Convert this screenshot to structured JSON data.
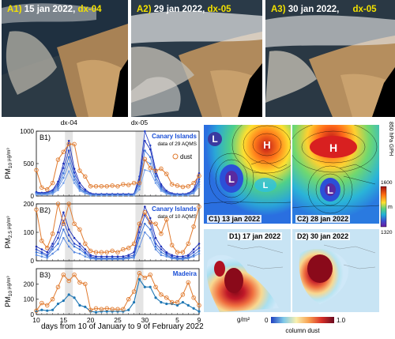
{
  "satellite": [
    {
      "id": "A1)",
      "date": "15 jan 2022,",
      "dx": "dx-04"
    },
    {
      "id": "A2)",
      "date": "29 jan 2022,",
      "dx": "dx-05"
    },
    {
      "id": "A3)",
      "date": "30 jan 2022,",
      "dx": "dx-05"
    }
  ],
  "dx_marks": [
    "dx-04",
    "dx-05"
  ],
  "chart_data": [
    {
      "type": "line",
      "panel": "B1)",
      "ylabel_main": "PM",
      "ylabel_sub": "10",
      "ylabel_unit": " µg/m³",
      "region": "Canary Islands",
      "note": "data of 29 AQMS",
      "legend": "dust",
      "ylim": [
        0,
        1000
      ],
      "yticks": [
        0,
        500,
        1000
      ],
      "x": [
        10,
        11,
        12,
        13,
        14,
        15,
        16,
        17,
        18,
        19,
        20,
        21,
        22,
        23,
        24,
        25,
        26,
        27,
        28,
        29,
        30,
        31,
        1,
        2,
        3,
        4,
        5,
        6,
        7,
        8,
        9
      ],
      "dust": [
        400,
        130,
        100,
        200,
        560,
        680,
        800,
        800,
        390,
        300,
        150,
        150,
        150,
        150,
        160,
        150,
        180,
        170,
        200,
        200,
        570,
        430,
        390,
        420,
        340,
        180,
        160,
        140,
        150,
        200,
        310
      ],
      "stations": [
        [
          60,
          50,
          60,
          90,
          220,
          500,
          850,
          420,
          200,
          100,
          40,
          30,
          30,
          30,
          30,
          30,
          30,
          30,
          30,
          250,
          850,
          720,
          350,
          180,
          80,
          40,
          30,
          30,
          40,
          100,
          350
        ],
        [
          50,
          40,
          50,
          80,
          180,
          430,
          700,
          360,
          150,
          80,
          30,
          20,
          20,
          20,
          20,
          20,
          20,
          20,
          30,
          300,
          1000,
          780,
          400,
          150,
          60,
          30,
          20,
          20,
          30,
          80,
          260
        ],
        [
          40,
          30,
          40,
          60,
          150,
          350,
          600,
          300,
          120,
          60,
          20,
          20,
          20,
          20,
          20,
          20,
          20,
          20,
          20,
          200,
          700,
          600,
          300,
          120,
          50,
          20,
          20,
          20,
          20,
          60,
          220
        ],
        [
          30,
          20,
          30,
          40,
          120,
          280,
          500,
          250,
          100,
          50,
          20,
          10,
          10,
          10,
          10,
          10,
          10,
          10,
          20,
          150,
          550,
          500,
          250,
          100,
          40,
          20,
          10,
          10,
          20,
          50,
          180
        ],
        [
          20,
          20,
          20,
          30,
          90,
          200,
          380,
          200,
          80,
          40,
          10,
          10,
          10,
          10,
          10,
          10,
          10,
          10,
          10,
          100,
          400,
          380,
          200,
          80,
          30,
          10,
          10,
          10,
          10,
          40,
          140
        ]
      ]
    },
    {
      "type": "line",
      "panel": "B2)",
      "ylabel_main": "PM",
      "ylabel_sub": "2.5",
      "ylabel_unit": " µg/m³",
      "region": "Canary Islands",
      "note": "data of 10 AQMS",
      "ylim": [
        0,
        200
      ],
      "yticks": [
        0,
        100,
        200
      ],
      "x": [
        10,
        11,
        12,
        13,
        14,
        15,
        16,
        17,
        18,
        19,
        20,
        21,
        22,
        23,
        24,
        25,
        26,
        27,
        28,
        29,
        30,
        31,
        1,
        2,
        3,
        4,
        5,
        6,
        7,
        8,
        9
      ],
      "dust": [
        180,
        70,
        45,
        95,
        210,
        130,
        210,
        130,
        110,
        60,
        35,
        30,
        30,
        30,
        35,
        30,
        40,
        45,
        60,
        130,
        170,
        135,
        130,
        95,
        145,
        55,
        30,
        30,
        60,
        120,
        190
      ],
      "stations": [
        [
          50,
          40,
          30,
          60,
          100,
          170,
          110,
          80,
          60,
          40,
          20,
          15,
          15,
          15,
          15,
          15,
          15,
          20,
          30,
          120,
          190,
          150,
          80,
          50,
          30,
          20,
          15,
          15,
          20,
          40,
          60
        ],
        [
          40,
          30,
          20,
          50,
          80,
          140,
          90,
          60,
          50,
          30,
          15,
          10,
          10,
          10,
          10,
          10,
          10,
          15,
          20,
          100,
          160,
          130,
          60,
          40,
          25,
          15,
          10,
          10,
          15,
          30,
          45
        ],
        [
          30,
          25,
          15,
          40,
          60,
          110,
          70,
          50,
          40,
          25,
          10,
          8,
          8,
          8,
          8,
          8,
          8,
          10,
          15,
          80,
          130,
          110,
          50,
          30,
          20,
          10,
          8,
          8,
          10,
          20,
          35
        ],
        [
          20,
          15,
          10,
          25,
          40,
          80,
          50,
          30,
          25,
          15,
          8,
          5,
          5,
          5,
          5,
          5,
          5,
          8,
          10,
          50,
          100,
          80,
          40,
          20,
          15,
          8,
          5,
          5,
          8,
          15,
          25
        ]
      ]
    },
    {
      "type": "line",
      "panel": "B3)",
      "ylabel_main": "PM",
      "ylabel_sub": "10",
      "ylabel_unit": " µg/m³",
      "region": "Madeira",
      "ylim": [
        0,
        300
      ],
      "yticks": [
        0,
        100,
        200
      ],
      "x": [
        10,
        11,
        12,
        13,
        14,
        15,
        16,
        17,
        18,
        19,
        20,
        21,
        22,
        23,
        24,
        25,
        26,
        27,
        28,
        29,
        30,
        31,
        1,
        2,
        3,
        4,
        5,
        6,
        7,
        8,
        9
      ],
      "dust": [
        25,
        75,
        60,
        100,
        180,
        260,
        220,
        260,
        210,
        200,
        30,
        40,
        35,
        40,
        35,
        35,
        35,
        100,
        150,
        270,
        240,
        260,
        180,
        130,
        110,
        80,
        80,
        130,
        210,
        110,
        60
      ],
      "station": [
        20,
        30,
        25,
        30,
        70,
        90,
        130,
        110,
        60,
        50,
        20,
        15,
        20,
        20,
        20,
        20,
        20,
        30,
        80,
        230,
        180,
        180,
        110,
        80,
        70,
        70,
        60,
        80,
        60,
        40,
        20
      ]
    }
  ],
  "xticks": [
    "10",
    "15",
    "20",
    "25",
    "30",
    "5",
    "9"
  ],
  "xaxis_label": "days from 10 of January to 9 of February  2022",
  "maps": [
    {
      "id": "C1)",
      "date": "13 jan 2022"
    },
    {
      "id": "C2)",
      "date": "28 jan 2022"
    },
    {
      "id": "D1)",
      "date": "17 jan 2022"
    },
    {
      "id": "D2)",
      "date": "30 jan 2022"
    }
  ],
  "pressure_labels": [
    "L",
    "H",
    "L",
    "L",
    "H",
    "L"
  ],
  "gph_colorbar": {
    "label": "850 hPa GPH",
    "max": "1600",
    "unit": "m",
    "min": "1320"
  },
  "dust_colorbar": {
    "unit": "g/m²",
    "min": "0",
    "max": "1.0",
    "label": "column dust"
  },
  "colors": {
    "dust": "#e07a2e",
    "station_dark": "#1d2fb8",
    "station_light": "#3a74d8",
    "madeira": "#1f77b4",
    "region_text": "#1a4fd6"
  }
}
